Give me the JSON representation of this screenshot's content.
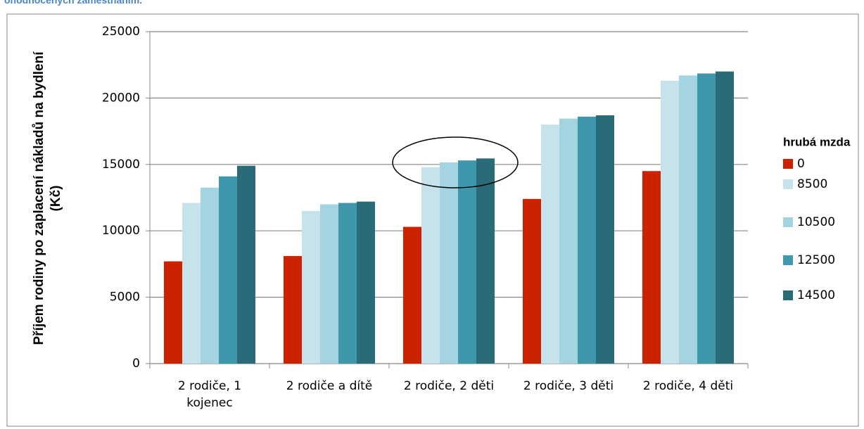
{
  "chart_data": {
    "type": "bar",
    "heading": "ohodnocených zaměstnáním.",
    "y_label": "Příjem rodiny po zaplacení nákladů na bydlení (Kč)",
    "legend_title": "hrubá mzda",
    "categories": [
      "2 rodiče, 1 kojenec",
      "2 rodiče a dítě",
      "2 rodiče, 2 děti",
      "2 rodiče, 3 děti",
      "2 rodiče, 4 děti"
    ],
    "series": [
      {
        "name": "0",
        "color": "#cc2200",
        "values": [
          7700,
          8100,
          10300,
          12400,
          14500
        ]
      },
      {
        "name": "8500",
        "color": "#c6e2ea",
        "values": [
          12100,
          11500,
          14800,
          18000,
          21300
        ]
      },
      {
        "name": "10500",
        "color": "#a4d4e2",
        "values": [
          13250,
          12000,
          15150,
          18450,
          21700
        ]
      },
      {
        "name": "12500",
        "color": "#3f97ab",
        "values": [
          14100,
          12100,
          15300,
          18600,
          21850
        ]
      },
      {
        "name": "14500",
        "color": "#2a6b7a",
        "values": [
          14900,
          12200,
          15450,
          18700,
          22000
        ]
      }
    ],
    "ylim": [
      0,
      25000
    ],
    "yticks": [
      0,
      5000,
      10000,
      15000,
      20000,
      25000
    ],
    "grid": true
  }
}
